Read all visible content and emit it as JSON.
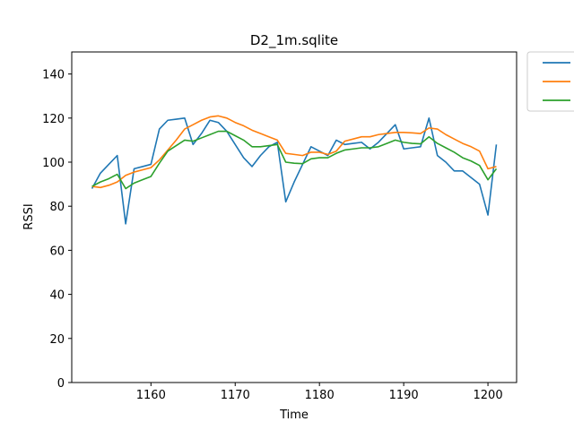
{
  "chart_data": {
    "type": "line",
    "title": "D2_1m.sqlite",
    "xlabel": "Time",
    "ylabel": "RSSI",
    "xlim": [
      1150.6,
      1203.4
    ],
    "ylim": [
      0,
      150
    ],
    "xticks": [
      1160,
      1170,
      1180,
      1190,
      1200
    ],
    "yticks": [
      0,
      20,
      40,
      60,
      80,
      100,
      120,
      140
    ],
    "grid": false,
    "legend_position": "outside-top-right",
    "x": [
      1153,
      1154,
      1155,
      1156,
      1157,
      1158,
      1159,
      1160,
      1161,
      1162,
      1163,
      1164,
      1165,
      1166,
      1167,
      1168,
      1169,
      1170,
      1171,
      1172,
      1173,
      1174,
      1175,
      1176,
      1177,
      1178,
      1179,
      1180,
      1181,
      1182,
      1183,
      1184,
      1185,
      1186,
      1187,
      1188,
      1189,
      1190,
      1191,
      1192,
      1193,
      1194,
      1195,
      1196,
      1197,
      1198,
      1199,
      1200,
      1201
    ],
    "series": [
      {
        "name": "",
        "color": "#1f77b4",
        "values": [
          88,
          95,
          99,
          103,
          72,
          97,
          98,
          99,
          115,
          119,
          119.5,
          120,
          108,
          113,
          119,
          118,
          114,
          108,
          102,
          98,
          103,
          107,
          109,
          82,
          91,
          99,
          107,
          105,
          103,
          110,
          108,
          108.5,
          109,
          106,
          109,
          113,
          117,
          106,
          106.5,
          107,
          120,
          103,
          100,
          96,
          96,
          93,
          90,
          76,
          108
        ]
      },
      {
        "name": "",
        "color": "#ff7f0e",
        "values": [
          89,
          88.5,
          89.5,
          91,
          94,
          95.5,
          96.5,
          97.5,
          101,
          105.5,
          110,
          115,
          117,
          119,
          120.5,
          121,
          120,
          118,
          116.5,
          114.5,
          113,
          111.5,
          110,
          104,
          103.5,
          103,
          104.5,
          104.5,
          103.5,
          105,
          109.5,
          110.5,
          111.5,
          111.5,
          112.5,
          113,
          113.5,
          113.5,
          113.3,
          113,
          115.5,
          115,
          112.5,
          110.5,
          108.5,
          107,
          105,
          97,
          98
        ]
      },
      {
        "name": "",
        "color": "#2ca02c",
        "values": [
          89,
          91,
          92.5,
          94.5,
          88,
          90.5,
          92,
          93.5,
          99.5,
          105,
          107.5,
          110,
          109.5,
          111,
          112.5,
          114,
          114,
          112,
          110,
          107,
          107,
          107.5,
          108,
          100,
          99.5,
          99.3,
          101.5,
          102,
          102,
          104,
          105.5,
          106,
          106.5,
          106.5,
          107,
          108.5,
          110,
          109,
          108.5,
          108.3,
          111.5,
          108.5,
          106.5,
          104.5,
          102,
          100.5,
          98.5,
          92,
          97
        ]
      }
    ]
  }
}
